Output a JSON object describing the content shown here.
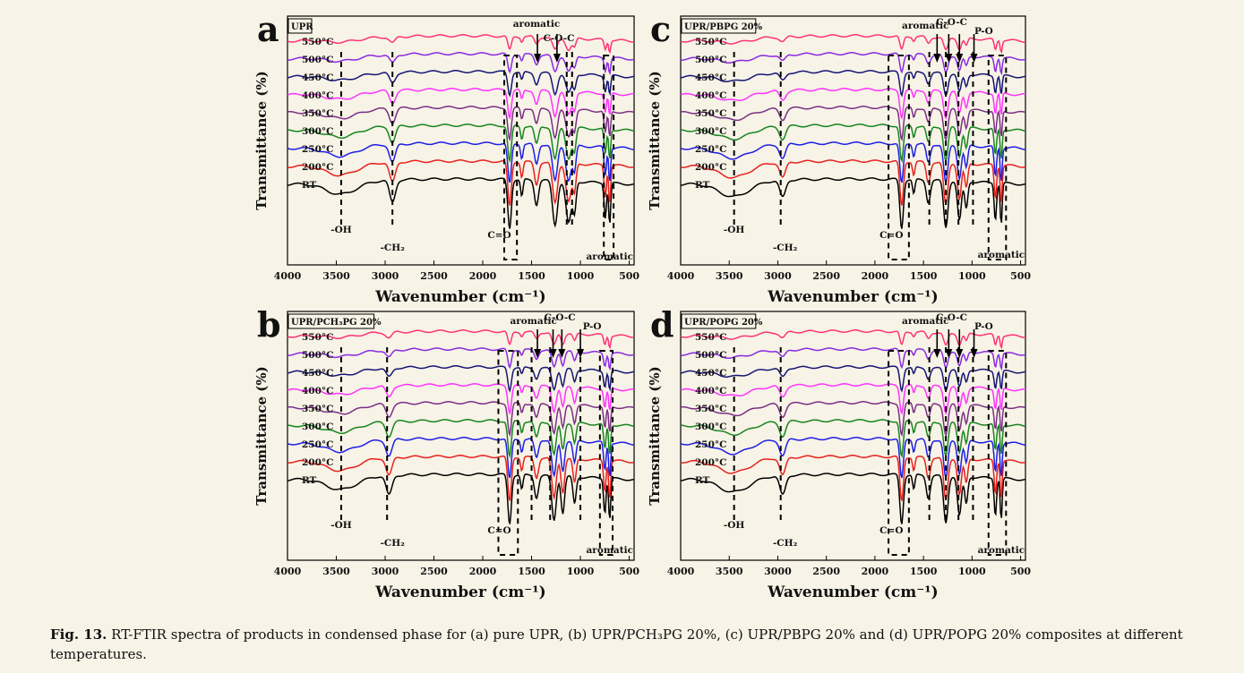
{
  "caption": {
    "label": "Fig. 13.",
    "text": "RT-FTIR spectra of products in condensed phase for (a) pure UPR, (b) UPR/PCH₃PG 20%, (c) UPR/PBPG 20% and (d) UPR/POPG 20% composites at different temperatures."
  },
  "colors": {
    "RT": "#000000",
    "200°C": "#e8211d",
    "250°C": "#1e1ee6",
    "300°C": "#17851f",
    "350°C": "#7b2f86",
    "400°C": "#ff33ff",
    "450°C": "#151575",
    "500°C": "#8a2be2",
    "550°C": "#ff3377"
  },
  "chart_data": [
    {
      "panel_letter": "a",
      "legend_box": "UPR",
      "type": "line",
      "xlabel": "Wavenumber (cm⁻¹)",
      "ylabel": "Transmittance (%)",
      "xlim": [
        4000,
        450
      ],
      "x_ticks": [
        4000,
        3500,
        3000,
        2500,
        2000,
        1500,
        1000,
        500
      ],
      "x_ticks_text": [
        "4000",
        "3500",
        "3000",
        "2500",
        "2000",
        "1500",
        "1000",
        "500"
      ],
      "series_labels": [
        "RT",
        "200°C",
        "250°C",
        "300°C",
        "350°C",
        "400°C",
        "450°C",
        "500°C",
        "550°C"
      ],
      "band_labels": [
        "-OH",
        "-CH₂",
        "C=O",
        "aromatic",
        "C-O-C",
        "aromatic"
      ],
      "dashed_lines_x": [
        3450,
        2925,
        1140,
        1085
      ],
      "dashed_boxes_x": [
        [
          1780,
          1650
        ],
        [
          760,
          660
        ]
      ],
      "arrows_x": [
        1440,
        1240
      ],
      "peaks": [
        {
          "x": 3450,
          "depth": 0.25,
          "width": 160
        },
        {
          "x": 2925,
          "depth": 0.45,
          "width": 30
        },
        {
          "x": 1725,
          "depth": 1.0,
          "width": 18
        },
        {
          "x": 1600,
          "depth": 0.35,
          "width": 12
        },
        {
          "x": 1450,
          "depth": 0.5,
          "width": 20
        },
        {
          "x": 1260,
          "depth": 0.9,
          "width": 25
        },
        {
          "x": 1120,
          "depth": 0.85,
          "width": 28
        },
        {
          "x": 1060,
          "depth": 0.6,
          "width": 16
        },
        {
          "x": 745,
          "depth": 0.7,
          "width": 12
        },
        {
          "x": 700,
          "depth": 0.85,
          "width": 10
        }
      ]
    },
    {
      "panel_letter": "b",
      "legend_box": "UPR/PCH₃PG 20%",
      "type": "line",
      "xlabel": "Wavenumber (cm⁻¹)",
      "ylabel": "Transmittance (%)",
      "xlim": [
        4000,
        450
      ],
      "x_ticks": [
        4000,
        3500,
        3000,
        2500,
        2000,
        1500,
        1000,
        500
      ],
      "x_ticks_text": [
        "4000",
        "3500",
        "3000",
        "2500",
        "2000",
        "1500",
        "1000",
        "500"
      ],
      "series_labels": [
        "RT",
        "200°C",
        "250°C",
        "300°C",
        "350°C",
        "400°C",
        "450°C",
        "500°C",
        "550°C"
      ],
      "band_labels": [
        "-OH",
        "-CH₂",
        "C=O",
        "aromatic",
        "C-O-C",
        "P-O",
        "aromatic"
      ],
      "dashed_lines_x": [
        3450,
        2980,
        1500,
        1310,
        1000
      ],
      "dashed_boxes_x": [
        [
          1840,
          1640
        ],
        [
          800,
          670
        ]
      ],
      "arrows_x": [
        1440,
        1280,
        1190,
        1000
      ],
      "peaks": [
        {
          "x": 3450,
          "depth": 0.25,
          "width": 160
        },
        {
          "x": 2960,
          "depth": 0.4,
          "width": 30
        },
        {
          "x": 1725,
          "depth": 1.0,
          "width": 18
        },
        {
          "x": 1600,
          "depth": 0.3,
          "width": 12
        },
        {
          "x": 1450,
          "depth": 0.45,
          "width": 20
        },
        {
          "x": 1270,
          "depth": 0.9,
          "width": 22
        },
        {
          "x": 1180,
          "depth": 0.75,
          "width": 18
        },
        {
          "x": 1060,
          "depth": 0.55,
          "width": 16
        },
        {
          "x": 750,
          "depth": 0.7,
          "width": 12
        },
        {
          "x": 700,
          "depth": 0.85,
          "width": 10
        }
      ]
    },
    {
      "panel_letter": "c",
      "legend_box": "UPR/PBPG 20%",
      "type": "line",
      "xlabel": "Wavenumber (cm⁻¹)",
      "ylabel": "Transmittance (%)",
      "xlim": [
        4000,
        450
      ],
      "x_ticks": [
        4000,
        3500,
        3000,
        2500,
        2000,
        1500,
        1000,
        500
      ],
      "x_ticks_text": [
        "4000",
        "3500",
        "3000",
        "2500",
        "2000",
        "1500",
        "1000",
        "500"
      ],
      "series_labels": [
        "RT",
        "200°C",
        "250°C",
        "300°C",
        "350°C",
        "400°C",
        "450°C",
        "500°C",
        "550°C"
      ],
      "band_labels": [
        "-OH",
        "-CH₂",
        "C=O",
        "aromatic",
        "C-O-C",
        "P-O",
        "aromatic"
      ],
      "dashed_lines_x": [
        3450,
        2970,
        1440,
        1270,
        1140,
        990
      ],
      "dashed_boxes_x": [
        [
          1860,
          1650
        ],
        [
          830,
          650
        ]
      ],
      "arrows_x": [
        1360,
        1240,
        1130,
        980
      ],
      "peaks": [
        {
          "x": 3450,
          "depth": 0.3,
          "width": 160
        },
        {
          "x": 2950,
          "depth": 0.35,
          "width": 30
        },
        {
          "x": 1725,
          "depth": 1.0,
          "width": 18
        },
        {
          "x": 1600,
          "depth": 0.3,
          "width": 12
        },
        {
          "x": 1450,
          "depth": 0.45,
          "width": 20
        },
        {
          "x": 1270,
          "depth": 0.95,
          "width": 22
        },
        {
          "x": 1130,
          "depth": 0.8,
          "width": 20
        },
        {
          "x": 1060,
          "depth": 0.55,
          "width": 16
        },
        {
          "x": 760,
          "depth": 0.75,
          "width": 12
        },
        {
          "x": 700,
          "depth": 0.85,
          "width": 10
        }
      ]
    },
    {
      "panel_letter": "d",
      "legend_box": "UPR/POPG 20%",
      "type": "line",
      "xlabel": "Wavenumber (cm⁻¹)",
      "ylabel": "Transmittance (%)",
      "xlim": [
        4000,
        450
      ],
      "x_ticks": [
        4000,
        3500,
        3000,
        2500,
        2000,
        1500,
        1000,
        500
      ],
      "x_ticks_text": [
        "4000",
        "3500",
        "3000",
        "2500",
        "2000",
        "1500",
        "1000",
        "500"
      ],
      "series_labels": [
        "RT",
        "200°C",
        "250°C",
        "300°C",
        "350°C",
        "400°C",
        "450°C",
        "500°C",
        "550°C"
      ],
      "band_labels": [
        "-OH",
        "-CH₂",
        "C=O",
        "aromatic",
        "C-O-C",
        "P-O",
        "aromatic"
      ],
      "dashed_lines_x": [
        3450,
        2970,
        1440,
        1270,
        1140,
        990
      ],
      "dashed_boxes_x": [
        [
          1860,
          1650
        ],
        [
          830,
          650
        ]
      ],
      "arrows_x": [
        1360,
        1240,
        1130,
        980
      ],
      "peaks": [
        {
          "x": 3450,
          "depth": 0.3,
          "width": 160
        },
        {
          "x": 2950,
          "depth": 0.4,
          "width": 30
        },
        {
          "x": 1725,
          "depth": 1.0,
          "width": 18
        },
        {
          "x": 1600,
          "depth": 0.3,
          "width": 12
        },
        {
          "x": 1450,
          "depth": 0.45,
          "width": 20
        },
        {
          "x": 1270,
          "depth": 0.95,
          "width": 22
        },
        {
          "x": 1130,
          "depth": 0.8,
          "width": 20
        },
        {
          "x": 1060,
          "depth": 0.55,
          "width": 16
        },
        {
          "x": 760,
          "depth": 0.75,
          "width": 12
        },
        {
          "x": 700,
          "depth": 0.85,
          "width": 10
        }
      ]
    }
  ]
}
